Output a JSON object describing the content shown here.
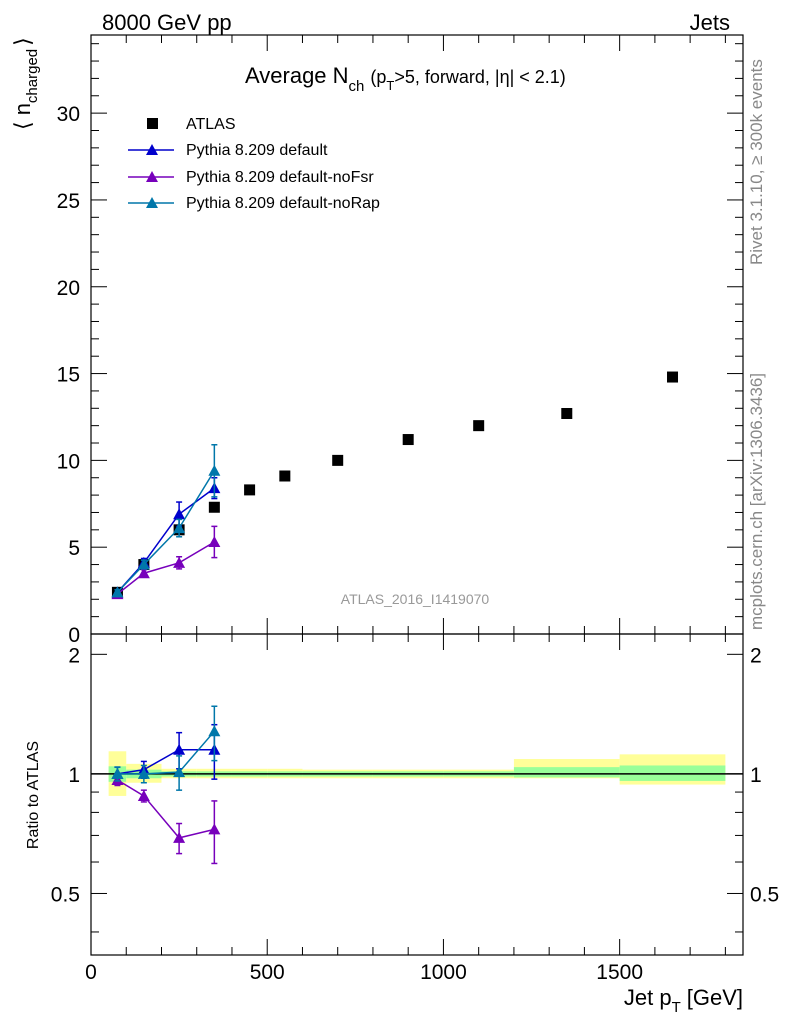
{
  "header": {
    "left": "8000 GeV pp",
    "right": "Jets"
  },
  "side_labels": {
    "rivet": "Rivet 3.1.10, ≥ 300k events",
    "mcplots": "mcplots.cern.ch [arXiv:1306.3436]"
  },
  "watermark": "ATLAS_2016_I1419070",
  "chart_data": [
    {
      "type": "scatter",
      "title": {
        "main": "Average N",
        "sub_ch": "ch",
        "paren_open": "(p",
        "sub_T": "T",
        "rest": ">5, forward, |η| < 2.1)"
      },
      "ylabel": {
        "main": "⟨ n",
        "sub": "charged",
        "close": "⟩"
      },
      "xlim": [
        0,
        1850
      ],
      "ylim": [
        0,
        34.5
      ],
      "yticks": [
        0,
        5,
        10,
        15,
        20,
        25,
        30
      ],
      "ytick_labels": [
        "0",
        "5",
        "10",
        "15",
        "20",
        "25",
        "30"
      ],
      "legend": {
        "position": "top-left",
        "entries": [
          "ATLAS",
          "Pythia 8.209 default",
          "Pythia 8.209 default-noFsr",
          "Pythia 8.209 default-noRap"
        ]
      },
      "series": [
        {
          "name": "ATLAS",
          "marker": "square",
          "color": "#000000",
          "x": [
            75,
            150,
            250,
            350,
            450,
            550,
            700,
            900,
            1100,
            1350,
            1650
          ],
          "y": [
            2.4,
            4.0,
            6.0,
            7.3,
            8.3,
            9.1,
            10.0,
            11.2,
            12.0,
            12.7,
            14.8
          ]
        },
        {
          "name": "Pythia 8.209 default",
          "marker": "triangle",
          "color": "#0000cc",
          "x": [
            75,
            150,
            250,
            350
          ],
          "y": [
            2.4,
            4.1,
            6.9,
            8.4
          ],
          "err": [
            0.15,
            0.25,
            0.7,
            0.6
          ]
        },
        {
          "name": "Pythia 8.209 default-noFsr",
          "marker": "triangle",
          "color": "#7700bb",
          "x": [
            75,
            150,
            250,
            350
          ],
          "y": [
            2.3,
            3.5,
            4.1,
            5.3
          ],
          "err": [
            0.1,
            0.2,
            0.35,
            0.9
          ]
        },
        {
          "name": "Pythia 8.209 default-noRap",
          "marker": "triangle",
          "color": "#0077aa",
          "x": [
            75,
            150,
            250,
            350
          ],
          "y": [
            2.4,
            4.0,
            6.1,
            9.4
          ],
          "err": [
            0.15,
            0.25,
            0.5,
            1.5
          ]
        }
      ]
    },
    {
      "type": "scatter",
      "ylabel": "Ratio to ATLAS",
      "xlabel": {
        "main": "Jet p",
        "sub": "T",
        "unit": "[GeV]"
      },
      "xlim": [
        0,
        1850
      ],
      "ylim": [
        0.35,
        2.25
      ],
      "xticks": [
        0,
        500,
        1000,
        1500
      ],
      "xtick_labels": [
        "0",
        "500",
        "1000",
        "1500"
      ],
      "yticks": [
        0.5,
        1,
        2
      ],
      "ytick_labels": [
        "0.5",
        "1",
        "2"
      ],
      "bands": [
        {
          "x0": 50,
          "x1": 100,
          "stat": [
            0.955,
            1.045
          ],
          "tot": [
            0.88,
            1.14
          ]
        },
        {
          "x0": 100,
          "x1": 200,
          "stat": [
            0.975,
            1.025
          ],
          "tot": [
            0.95,
            1.06
          ]
        },
        {
          "x0": 200,
          "x1": 300,
          "stat": [
            0.985,
            1.015
          ],
          "tot": [
            0.975,
            1.03
          ]
        },
        {
          "x0": 300,
          "x1": 400,
          "stat": [
            0.985,
            1.015
          ],
          "tot": [
            0.975,
            1.03
          ]
        },
        {
          "x0": 400,
          "x1": 500,
          "stat": [
            0.985,
            1.015
          ],
          "tot": [
            0.975,
            1.03
          ]
        },
        {
          "x0": 500,
          "x1": 600,
          "stat": [
            0.985,
            1.015
          ],
          "tot": [
            0.975,
            1.03
          ]
        },
        {
          "x0": 600,
          "x1": 800,
          "stat": [
            0.985,
            1.015
          ],
          "tot": [
            0.975,
            1.025
          ]
        },
        {
          "x0": 800,
          "x1": 1000,
          "stat": [
            0.985,
            1.015
          ],
          "tot": [
            0.975,
            1.025
          ]
        },
        {
          "x0": 1000,
          "x1": 1200,
          "stat": [
            0.985,
            1.015
          ],
          "tot": [
            0.975,
            1.025
          ]
        },
        {
          "x0": 1200,
          "x1": 1500,
          "stat": [
            0.98,
            1.04
          ],
          "tot": [
            0.975,
            1.09
          ]
        },
        {
          "x0": 1500,
          "x1": 1800,
          "stat": [
            0.96,
            1.05
          ],
          "tot": [
            0.94,
            1.12
          ]
        }
      ],
      "series": [
        {
          "name": "Pythia 8.209 default",
          "color": "#0000cc",
          "x": [
            75,
            150,
            250,
            350
          ],
          "y": [
            1.0,
            1.025,
            1.15,
            1.15
          ],
          "err": [
            0.04,
            0.05,
            0.12,
            0.18
          ]
        },
        {
          "name": "Pythia 8.209 default-noFsr",
          "color": "#7700bb",
          "x": [
            75,
            150,
            250,
            350
          ],
          "y": [
            0.965,
            0.88,
            0.69,
            0.725
          ],
          "err": [
            0.03,
            0.03,
            0.06,
            0.13
          ]
        },
        {
          "name": "Pythia 8.209 default-noRap",
          "color": "#0077aa",
          "x": [
            75,
            150,
            250,
            350
          ],
          "y": [
            1.0,
            1.0,
            1.01,
            1.28
          ],
          "err": [
            0.04,
            0.05,
            0.1,
            0.2
          ]
        }
      ]
    }
  ]
}
